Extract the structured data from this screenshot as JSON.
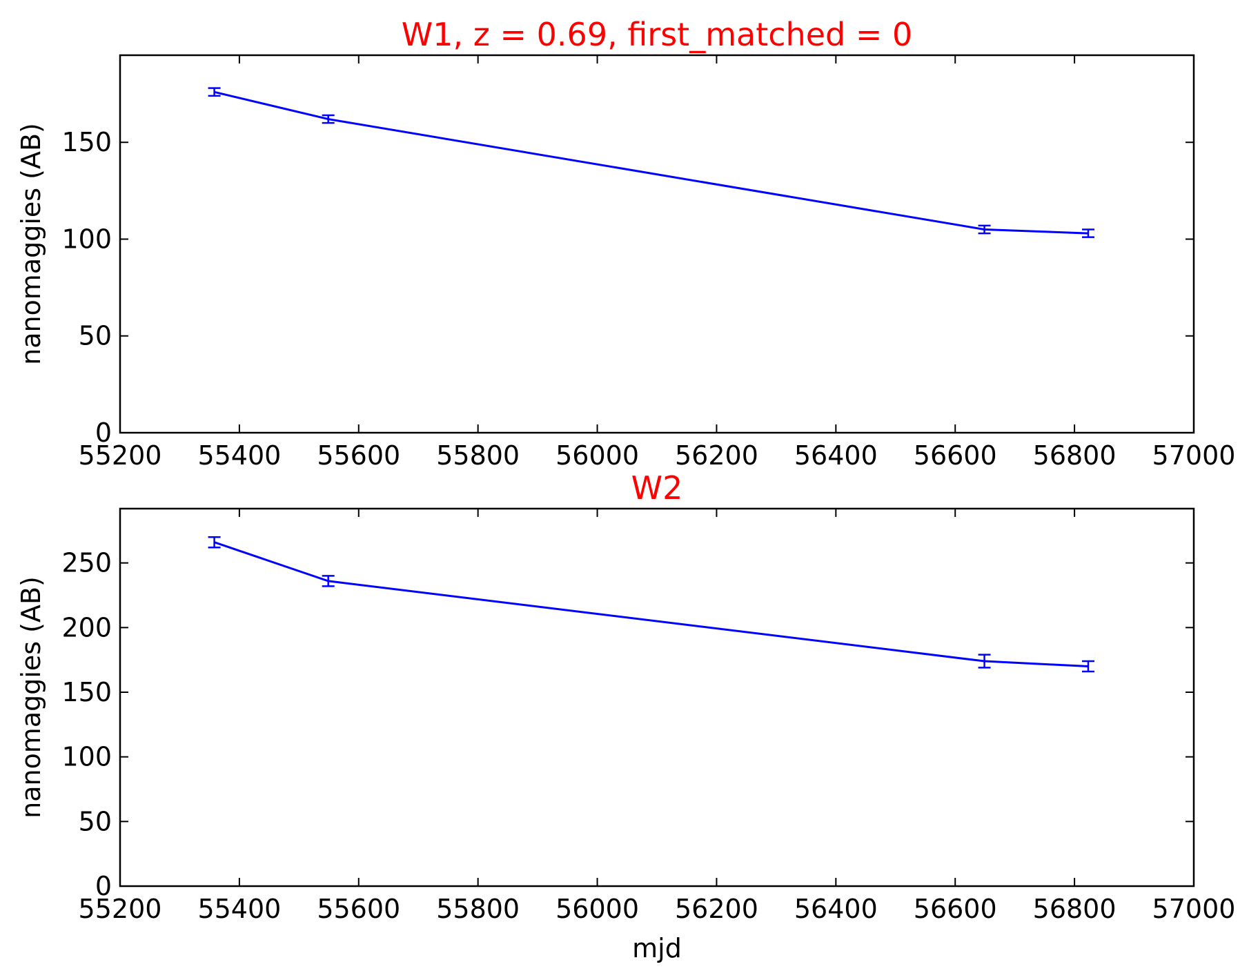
{
  "chart_data": [
    {
      "type": "line",
      "title": "W1, z = 0.69, first_matched = 0",
      "xlabel": "",
      "ylabel": "nanomaggies (AB)",
      "xlim": [
        55200,
        57000
      ],
      "ylim": [
        0,
        195
      ],
      "xticks": [
        55200,
        55400,
        55600,
        55800,
        56000,
        56200,
        56400,
        56600,
        56800,
        57000
      ],
      "yticks": [
        0,
        50,
        100,
        150
      ],
      "grid": false,
      "series": [
        {
          "x": [
            55358,
            55549,
            56649,
            56823
          ],
          "y": [
            176,
            162,
            105,
            103
          ],
          "yerr": [
            2,
            2,
            2,
            2
          ]
        }
      ]
    },
    {
      "type": "line",
      "title": "W2",
      "xlabel": "mjd",
      "ylabel": "nanomaggies (AB)",
      "xlim": [
        55200,
        57000
      ],
      "ylim": [
        0,
        292
      ],
      "xticks": [
        55200,
        55400,
        55600,
        55800,
        56000,
        56200,
        56400,
        56600,
        56800,
        57000
      ],
      "yticks": [
        0,
        50,
        100,
        150,
        200,
        250
      ],
      "grid": false,
      "series": [
        {
          "x": [
            55358,
            55549,
            56649,
            56823
          ],
          "y": [
            266,
            236,
            174,
            170
          ],
          "yerr": [
            4,
            4,
            5,
            4
          ]
        }
      ]
    }
  ],
  "colors": {
    "title": "#ff0000",
    "series": "#0000ff",
    "axes": "#000000",
    "text": "#000000"
  }
}
